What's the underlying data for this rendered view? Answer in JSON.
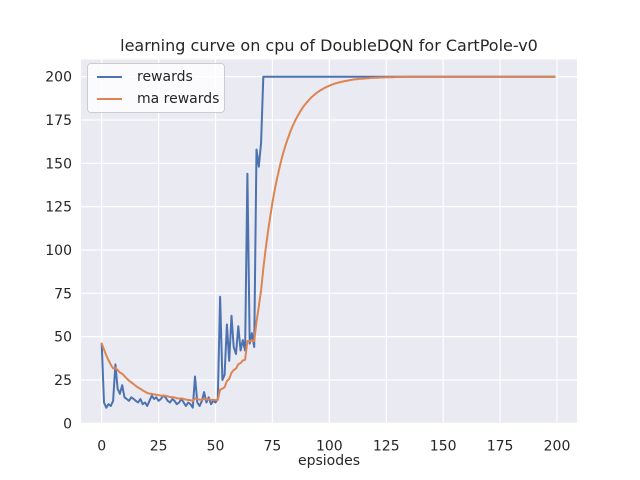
{
  "figure": {
    "title": "learning curve on cpu of DoubleDQN for CartPole-v0",
    "xlabel": "epsiodes",
    "background_color": "#ffffff",
    "plot_background_color": "#eaeaf2",
    "grid_color": "#ffffff",
    "text_color": "#262626"
  },
  "legend": {
    "entries": [
      {
        "label": "rewards",
        "color": "#4c72b0"
      },
      {
        "label": "ma rewards",
        "color": "#dd8452"
      }
    ]
  },
  "chart_data": {
    "type": "line",
    "title": "learning curve on cpu of DoubleDQN for CartPole-v0",
    "xlabel": "epsiodes",
    "ylabel": "",
    "x": "episode index 0..199",
    "xlim": [
      -9.2,
      208.9
    ],
    "ylim": [
      0,
      210
    ],
    "xticks": [
      0,
      25,
      50,
      75,
      100,
      125,
      150,
      175,
      200
    ],
    "yticks": [
      0,
      25,
      50,
      75,
      100,
      125,
      150,
      175,
      200
    ],
    "grid": true,
    "legend_position": "upper left",
    "series": [
      {
        "name": "rewards",
        "color": "#4c72b0",
        "values": [
          46,
          12,
          9,
          11,
          10,
          13,
          34,
          20,
          17,
          22,
          15,
          14,
          13,
          15,
          14,
          13,
          12,
          14,
          11,
          12,
          10,
          13,
          16,
          14,
          15,
          13,
          14,
          16,
          15,
          13,
          12,
          14,
          13,
          11,
          12,
          14,
          12,
          10,
          12,
          11,
          9,
          27,
          12,
          10,
          13,
          18,
          12,
          15,
          11,
          13,
          12,
          14,
          73,
          25,
          28,
          57,
          36,
          62,
          44,
          40,
          56,
          42,
          48,
          42,
          144,
          46,
          52,
          44,
          158,
          148,
          162,
          200,
          200,
          200,
          200,
          200,
          200,
          200,
          200,
          200,
          200,
          200,
          200,
          200,
          200,
          200,
          200,
          200,
          200,
          200,
          200,
          200,
          200,
          200,
          200,
          200,
          200,
          200,
          200,
          200,
          200,
          200,
          200,
          200,
          200,
          200,
          200,
          200,
          200,
          200,
          200,
          200,
          200,
          200,
          200,
          200,
          200,
          200,
          200,
          200,
          200,
          200,
          200,
          200,
          200,
          200,
          200,
          200,
          200,
          200,
          200,
          200,
          200,
          200,
          200,
          200,
          200,
          200,
          200,
          200,
          200,
          200,
          200,
          200,
          200,
          200,
          200,
          200,
          200,
          200,
          200,
          200,
          200,
          200,
          200,
          200,
          200,
          200,
          200,
          200,
          200,
          200,
          200,
          200,
          200,
          200,
          200,
          200,
          200,
          200,
          200,
          200,
          200,
          200,
          200,
          200,
          200,
          200,
          200,
          200,
          200,
          200,
          200,
          200,
          200,
          200,
          200,
          200,
          200,
          200,
          200,
          200,
          200,
          200,
          200,
          200,
          200,
          200,
          200,
          200
        ]
      },
      {
        "name": "ma rewards",
        "color": "#dd8452",
        "values": [
          46.0,
          42.6,
          39.2,
          36.4,
          33.8,
          31.7,
          31.9,
          30.7,
          29.3,
          28.6,
          27.2,
          25.9,
          24.6,
          23.6,
          22.6,
          21.6,
          20.6,
          19.9,
          19.0,
          18.3,
          17.5,
          17.1,
          17.0,
          16.7,
          16.5,
          16.2,
          16.0,
          16.0,
          15.9,
          15.6,
          15.2,
          15.1,
          14.9,
          14.5,
          14.3,
          14.3,
          14.1,
          13.7,
          13.5,
          13.3,
          12.9,
          14.3,
          14.1,
          13.7,
          13.6,
          14.0,
          13.8,
          13.9,
          13.6,
          13.5,
          13.4,
          13.5,
          19.4,
          20.0,
          20.8,
          24.4,
          25.6,
          29.2,
          30.7,
          31.6,
          34.1,
          34.8,
          36.2,
          36.7,
          47.5,
          47.3,
          47.8,
          47.4,
          58.5,
          67.4,
          76.9,
          89.2,
          100.3,
          110.2,
          119.2,
          127.3,
          134.6,
          141.1,
          147.0,
          152.3,
          157.1,
          161.4,
          165.2,
          168.7,
          171.8,
          174.7,
          177.2,
          179.5,
          181.5,
          183.4,
          185.0,
          186.5,
          187.9,
          189.1,
          190.2,
          191.2,
          192.0,
          192.8,
          193.6,
          194.2,
          194.8,
          195.3,
          195.8,
          196.2,
          196.6,
          196.9,
          197.2,
          197.5,
          197.7,
          198.0,
          198.2,
          198.4,
          198.5,
          198.7,
          198.8,
          198.9,
          199.0,
          199.1,
          199.2,
          199.3,
          199.4,
          199.4,
          199.5,
          199.5,
          199.6,
          199.6,
          199.7,
          199.7,
          199.7,
          199.8,
          199.8,
          199.8,
          199.8,
          199.9,
          199.9,
          199.9,
          199.9,
          199.9,
          199.9,
          199.9,
          199.9,
          199.9,
          199.9,
          199.9,
          199.9,
          199.9,
          199.9,
          199.9,
          199.9,
          199.9,
          200.0,
          200.0,
          200.0,
          200.0,
          200.0,
          200.0,
          200.0,
          200.0,
          200.0,
          200.0,
          200.0,
          200.0,
          200.0,
          200.0,
          200.0,
          200.0,
          200.0,
          200.0,
          200.0,
          200.0,
          200.0,
          200.0,
          200.0,
          200.0,
          200.0,
          200.0,
          200.0,
          200.0,
          200.0,
          200.0,
          200.0,
          200.0,
          200.0,
          200.0,
          200.0,
          200.0,
          200.0,
          200.0,
          200.0,
          200.0,
          200.0,
          200.0,
          200.0,
          200.0,
          200.0,
          200.0,
          200.0,
          200.0,
          200.0,
          200.0
        ]
      }
    ]
  }
}
